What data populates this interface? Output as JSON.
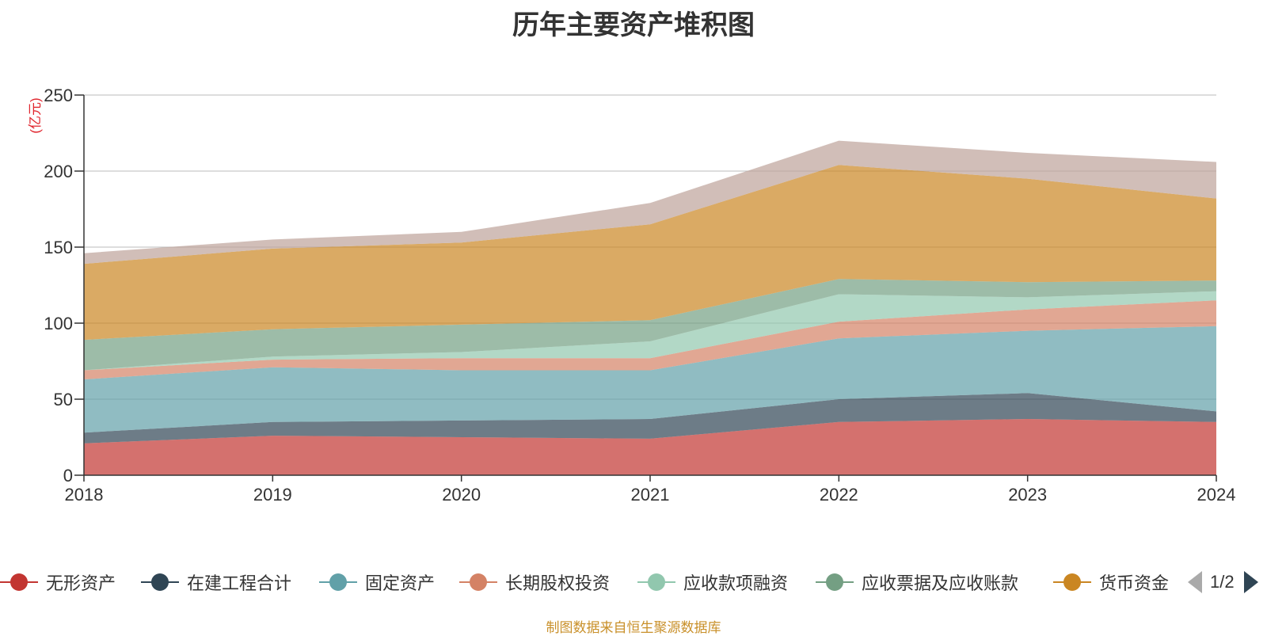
{
  "chart_data": {
    "type": "area",
    "title": "历年主要资产堆积图",
    "ylabel": "(亿元)",
    "xlabel": "",
    "stacked": true,
    "categories": [
      "2018",
      "2019",
      "2020",
      "2021",
      "2022",
      "2023",
      "2024"
    ],
    "ylim": [
      0,
      250
    ],
    "yticks": [
      0,
      50,
      100,
      150,
      200,
      250
    ],
    "grid": true,
    "legend_position": "bottom",
    "series": [
      {
        "name": "无形资产",
        "color": "#c23531",
        "values": [
          21,
          26,
          25,
          24,
          35,
          37,
          35
        ]
      },
      {
        "name": "在建工程合计",
        "color": "#2f4554",
        "values": [
          7,
          9,
          11,
          13,
          15,
          17,
          7
        ]
      },
      {
        "name": "固定资产",
        "color": "#61a0a8",
        "values": [
          35,
          36,
          33,
          32,
          40,
          41,
          56
        ]
      },
      {
        "name": "长期股权投资",
        "color": "#d48265",
        "values": [
          6,
          5,
          8,
          8,
          11,
          14,
          17
        ]
      },
      {
        "name": "应收款项融资",
        "color": "#91c7ae",
        "values": [
          0,
          2,
          4,
          11,
          18,
          8,
          6
        ]
      },
      {
        "name": "应收票据及应收账款",
        "color": "#749f83",
        "values": [
          20,
          18,
          18,
          14,
          10,
          10,
          7
        ]
      },
      {
        "name": "货币资金",
        "color": "#ca8622",
        "values": [
          50,
          53,
          54,
          63,
          75,
          68,
          54
        ]
      },
      {
        "name": "",
        "color": "#bda29a",
        "values": [
          7,
          6,
          7,
          14,
          16,
          17,
          24
        ]
      }
    ]
  },
  "legend": {
    "items": [
      {
        "label": "无形资产",
        "color": "#c23531"
      },
      {
        "label": "在建工程合计",
        "color": "#2f4554"
      },
      {
        "label": "固定资产",
        "color": "#61a0a8"
      },
      {
        "label": "长期股权投资",
        "color": "#d48265"
      },
      {
        "label": "应收款项融资",
        "color": "#91c7ae"
      },
      {
        "label": "应收票据及应收账款",
        "color": "#749f83"
      },
      {
        "label": "货币资金",
        "color": "#ca8622"
      }
    ],
    "page": "1/2"
  },
  "source": "制图数据来自恒生聚源数据库"
}
